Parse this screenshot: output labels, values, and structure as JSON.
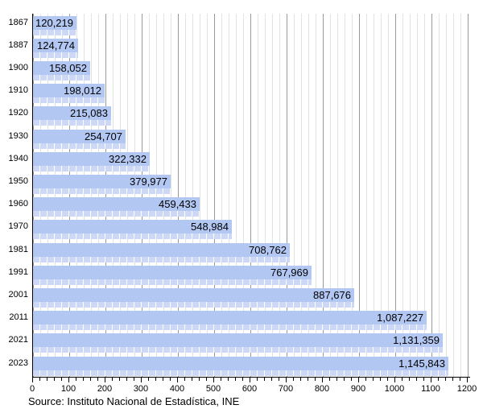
{
  "chart_data": {
    "type": "bar",
    "orientation": "horizontal",
    "title": "",
    "categories": [
      "1867",
      "1887",
      "1900",
      "1910",
      "1920",
      "1930",
      "1940",
      "1950",
      "1960",
      "1970",
      "1981",
      "1991",
      "2001",
      "2011",
      "2021",
      "2023"
    ],
    "values": [
      120219,
      124774,
      158052,
      198012,
      215083,
      254707,
      322332,
      379977,
      459433,
      548984,
      708762,
      767969,
      887676,
      1087227,
      1131359,
      1145843
    ],
    "value_labels": [
      "120,219",
      "124,774",
      "158,052",
      "198,012",
      "215,083",
      "254,707",
      "322,332",
      "379,977",
      "459,433",
      "548,984",
      "708,762",
      "767,969",
      "887,676",
      "1,087,227",
      "1,131,359",
      "1,145,843"
    ],
    "x_axis": {
      "min": 0,
      "max": 1200,
      "units_per_label": 1000,
      "major_step": 100,
      "minor_step": 20,
      "tick_labels": [
        "0",
        "100",
        "200",
        "300",
        "400",
        "500",
        "600",
        "700",
        "800",
        "900",
        "1000",
        "1100",
        "1200"
      ]
    },
    "grid": {
      "major_color": "#9a9a9a",
      "minor_color": "#e2e2e2"
    },
    "bar_color": "#b3c7f3",
    "bar_strip_color": "#ccd8f6",
    "axis_color": "#000000",
    "legend": null,
    "source": "Source: Instituto Nacional de Estadística, INE"
  }
}
